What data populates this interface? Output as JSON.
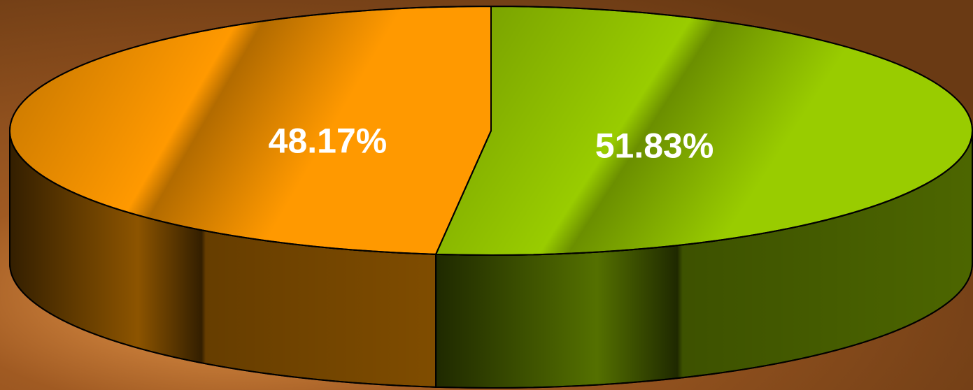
{
  "chart_data": {
    "type": "pie",
    "values": [
      51.83,
      48.17
    ],
    "value_labels": [
      "51.83%",
      "48.17%"
    ],
    "colors": [
      "#99cc00",
      "#ff9900"
    ]
  }
}
